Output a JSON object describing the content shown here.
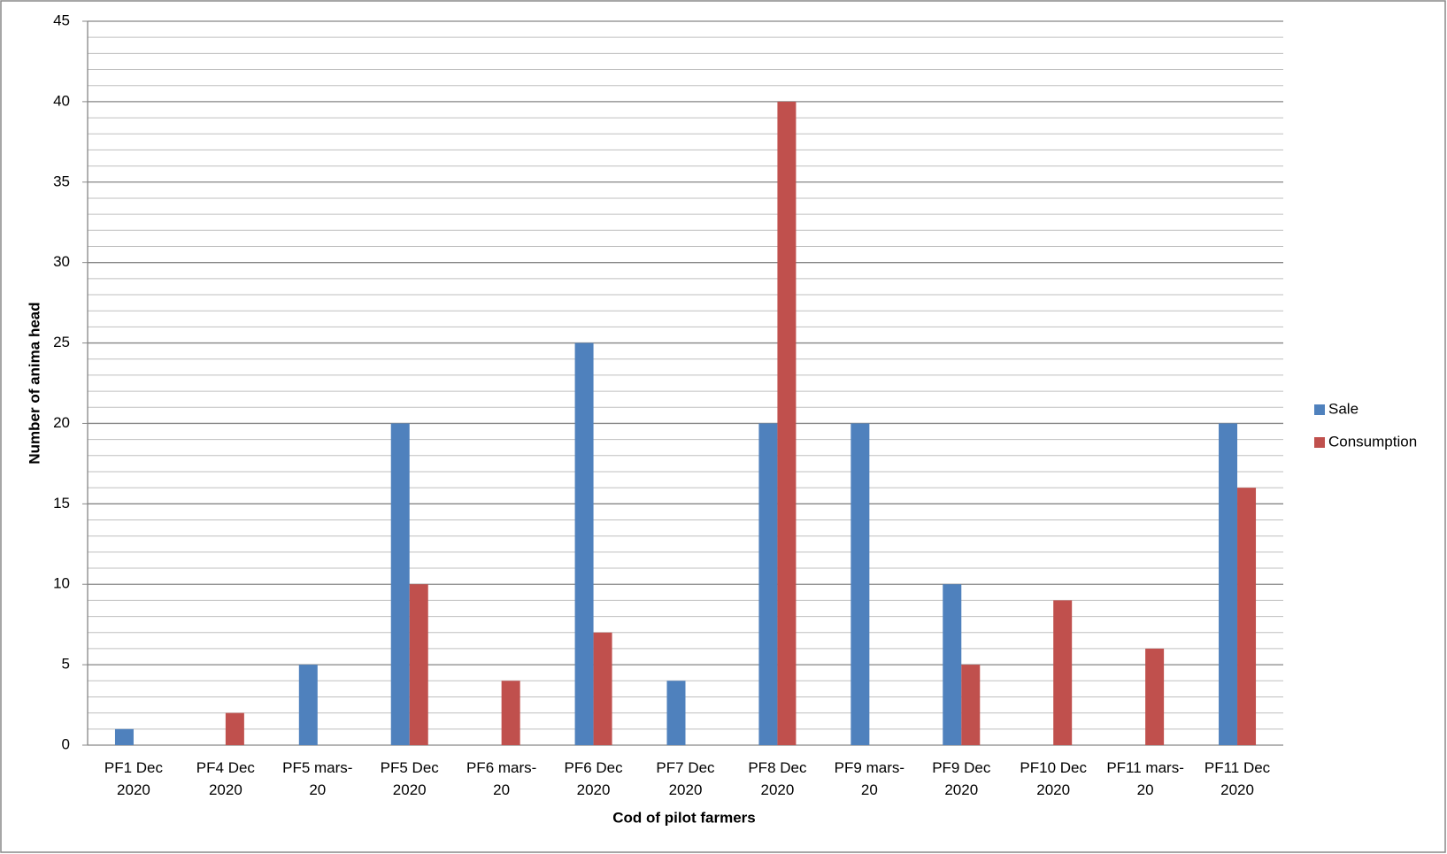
{
  "chart_data": {
    "type": "bar",
    "x_label": "Cod of pilot farmers",
    "y_label": "Number of  anima head",
    "categories": [
      "PF1 Dec 2020",
      "PF4 Dec 2020",
      "PF5 mars-20",
      "PF5 Dec 2020",
      "PF6 mars-20",
      "PF6 Dec 2020",
      "PF7 Dec 2020",
      "PF8 Dec 2020",
      "PF9 mars-20",
      "PF9 Dec 2020",
      "PF10 Dec 2020",
      "PF11 mars-20",
      "PF11 Dec 2020"
    ],
    "series": [
      {
        "name": "Sale",
        "color": "#4f81bd",
        "values": [
          1,
          null,
          5,
          20,
          null,
          25,
          4,
          20,
          20,
          10,
          null,
          null,
          20
        ]
      },
      {
        "name": "Consumption",
        "color": "#c0504d",
        "values": [
          null,
          2,
          null,
          10,
          4,
          7,
          null,
          40,
          null,
          5,
          9,
          6,
          16
        ]
      }
    ],
    "ylim": [
      0,
      45
    ],
    "yticks": [
      0,
      5,
      10,
      15,
      20,
      25,
      30,
      35,
      40,
      45
    ],
    "yminorticks": [
      1,
      2,
      3,
      4,
      6,
      7,
      8,
      9,
      11,
      12,
      13,
      14,
      16,
      17,
      18,
      19,
      21,
      22,
      23,
      24,
      26,
      27,
      28,
      29,
      31,
      32,
      33,
      34,
      36,
      37,
      38,
      39,
      41,
      42,
      43,
      44
    ],
    "grid": true,
    "legend": "right"
  }
}
